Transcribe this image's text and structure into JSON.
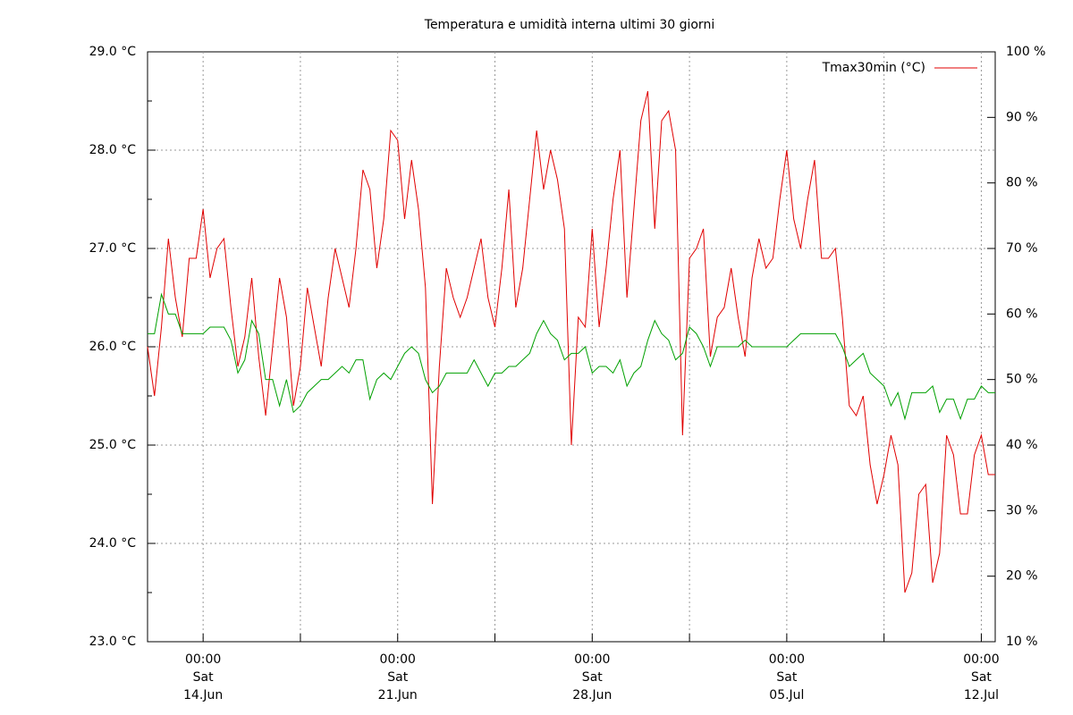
{
  "chart_data": {
    "type": "line",
    "title": "Temperatura e umidità interna ultimi 30 giorni",
    "legend": "upper right",
    "grid": true,
    "x": [
      0,
      0.25,
      0.5,
      0.75,
      1,
      1.25,
      1.5,
      1.75,
      2,
      2.25,
      2.5,
      2.75,
      3,
      3.25,
      3.5,
      3.75,
      4,
      4.25,
      4.5,
      4.75,
      5,
      5.25,
      5.5,
      5.75,
      6,
      6.25,
      6.5,
      6.75,
      7,
      7.25,
      7.5,
      7.75,
      8,
      8.25,
      8.5,
      8.75,
      9,
      9.25,
      9.5,
      9.75,
      10,
      10.25,
      10.5,
      10.75,
      11,
      11.25,
      11.5,
      11.75,
      12,
      12.25,
      12.5,
      12.75,
      13,
      13.25,
      13.5,
      13.75,
      14,
      14.25,
      14.5,
      14.75,
      15,
      15.25,
      15.5,
      15.75,
      16,
      16.25,
      16.5,
      16.75,
      17,
      17.25,
      17.5,
      17.75,
      18,
      18.25,
      18.5,
      18.75,
      19,
      19.25,
      19.5,
      19.75,
      20,
      20.25,
      20.5,
      20.75,
      21,
      21.25,
      21.5,
      21.75,
      22,
      22.25,
      22.5,
      22.75,
      23,
      23.25,
      23.5,
      23.75,
      24,
      24.25,
      24.5,
      24.75,
      25,
      25.25,
      25.5,
      25.75,
      26,
      26.25,
      26.5,
      26.75,
      27,
      27.25,
      27.5,
      27.75,
      28,
      28.25,
      28.5,
      28.75,
      29,
      29.25,
      29.5,
      29.75,
      30,
      30.25,
      30.5
    ],
    "xlim": [
      0,
      30.5
    ],
    "xticks": [
      {
        "value": 2,
        "label": "00:00\nSat\n14.Jun"
      },
      {
        "value": 9,
        "label": "00:00\nSat\n21.Jun"
      },
      {
        "value": 16,
        "label": "00:00\nSat\n28.Jun"
      },
      {
        "value": 23,
        "label": "00:00\nSat\n05.Jul"
      },
      {
        "value": 30,
        "label": "00:00\nSat\n12.Jul"
      }
    ],
    "xminorticks": [
      5.5,
      12.5,
      19.5,
      26.5
    ],
    "ylim": [
      23,
      29
    ],
    "yticks": [
      {
        "value": 23,
        "label": "23.0 °C"
      },
      {
        "value": 24,
        "label": "24.0 °C"
      },
      {
        "value": 25,
        "label": "25.0 °C"
      },
      {
        "value": 26,
        "label": "26.0 °C"
      },
      {
        "value": 27,
        "label": "27.0 °C"
      },
      {
        "value": 28,
        "label": "28.0 °C"
      },
      {
        "value": 29,
        "label": "29.0 °C"
      }
    ],
    "yminorticks": [
      23.5,
      24.5,
      25.5,
      26.5,
      27.5,
      28.5
    ],
    "y2lim": [
      10,
      100
    ],
    "y2ticks": [
      {
        "value": 10,
        "label": "10 %"
      },
      {
        "value": 20,
        "label": "20 %"
      },
      {
        "value": 30,
        "label": "30 %"
      },
      {
        "value": 40,
        "label": "40 %"
      },
      {
        "value": 50,
        "label": "50 %"
      },
      {
        "value": 60,
        "label": "60 %"
      },
      {
        "value": 70,
        "label": "70 %"
      },
      {
        "value": 80,
        "label": "80 %"
      },
      {
        "value": 90,
        "label": "90 %"
      },
      {
        "value": 100,
        "label": "100 %"
      }
    ],
    "series": [
      {
        "name": "Tmax30min (°C)",
        "color": "#e00000",
        "values": [
          26.0,
          25.5,
          26.2,
          27.1,
          26.5,
          26.1,
          26.9,
          26.9,
          27.4,
          26.7,
          27.0,
          27.1,
          26.4,
          25.8,
          26.1,
          26.7,
          25.9,
          25.3,
          26.0,
          26.7,
          26.3,
          25.4,
          25.8,
          26.6,
          26.2,
          25.8,
          26.5,
          27.0,
          26.7,
          26.4,
          27.0,
          27.8,
          27.6,
          26.8,
          27.3,
          28.2,
          28.1,
          27.3,
          27.9,
          27.4,
          26.6,
          24.4,
          25.8,
          26.8,
          26.5,
          26.3,
          26.5,
          26.8,
          27.1,
          26.5,
          26.2,
          26.8,
          27.6,
          26.4,
          26.8,
          27.5,
          28.2,
          27.6,
          28.0,
          27.7,
          27.2,
          25.0,
          26.3,
          26.2,
          27.2,
          26.2,
          26.8,
          27.5,
          28.0,
          26.5,
          27.4,
          28.3,
          28.6,
          27.2,
          28.3,
          28.4,
          28.0,
          25.1,
          26.9,
          27.0,
          27.2,
          25.9,
          26.3,
          26.4,
          26.8,
          26.3,
          25.9,
          26.7,
          27.1,
          26.8,
          26.9,
          27.5,
          28.0,
          27.3,
          27.0,
          27.5,
          27.9,
          26.9,
          26.9,
          27.0,
          26.3,
          25.4,
          25.3,
          25.5,
          24.8,
          24.4,
          24.7,
          25.1,
          24.8,
          23.5,
          23.7,
          24.5,
          24.6,
          23.6,
          23.9,
          25.1,
          24.9,
          24.3,
          24.3,
          24.9,
          25.1,
          24.7,
          24.7
        ]
      },
      {
        "color": "#00a000",
        "axis": "y2",
        "values": [
          57,
          57,
          63,
          60,
          60,
          57,
          57,
          57,
          57,
          58,
          58,
          58,
          56,
          51,
          53,
          59,
          57,
          50,
          50,
          46,
          50,
          45,
          46,
          48,
          49,
          50,
          50,
          51,
          52,
          51,
          53,
          53,
          47,
          50,
          51,
          50,
          52,
          54,
          55,
          54,
          50,
          48,
          49,
          51,
          51,
          51,
          51,
          53,
          51,
          49,
          51,
          51,
          52,
          52,
          53,
          54,
          57,
          59,
          57,
          56,
          53,
          54,
          54,
          55,
          51,
          52,
          52,
          51,
          53,
          49,
          51,
          52,
          56,
          59,
          57,
          56,
          53,
          54,
          58,
          57,
          55,
          52,
          55,
          55,
          55,
          55,
          56,
          55,
          55,
          55,
          55,
          55,
          55,
          56,
          57,
          57,
          57,
          57,
          57,
          57,
          55,
          52,
          53,
          54,
          51,
          50,
          49,
          46,
          48,
          44,
          48,
          48,
          48,
          49,
          45,
          47,
          47,
          44,
          47,
          47,
          49,
          48,
          48
        ]
      }
    ]
  }
}
